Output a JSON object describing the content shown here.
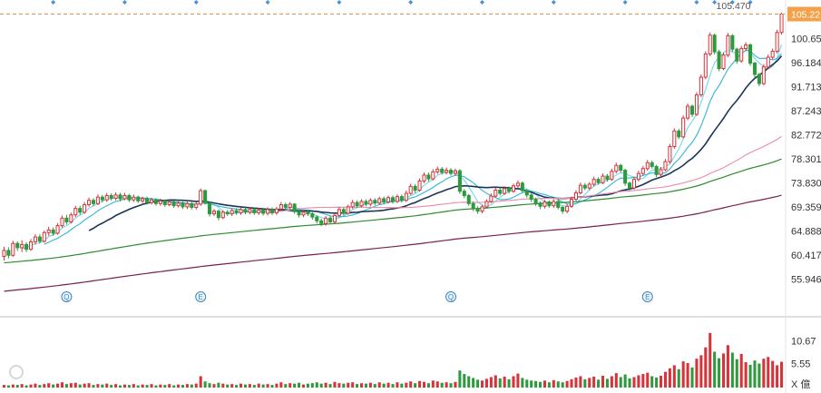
{
  "chart_data": {
    "type": "candlestick",
    "price_ticks": [
      "105.22",
      "100.654",
      "96.184",
      "91.713",
      "87.243",
      "82.772",
      "78.301",
      "73.830",
      "69.359",
      "64.888",
      "60.417",
      "55.946"
    ],
    "price_range": [
      51.5,
      107.5
    ],
    "last_price_label": "105.22",
    "high_label": "105.470",
    "volume_ticks": [
      "10.67",
      "5.55"
    ],
    "volume_unit": "X 億",
    "volume_range": [
      0,
      13.5
    ],
    "event_markers": [
      {
        "letter": "Q",
        "index": 14
      },
      {
        "letter": "E",
        "index": 44
      },
      {
        "letter": "Q",
        "index": 100
      },
      {
        "letter": "E",
        "index": 144
      }
    ],
    "candles": [
      [
        60.2,
        61.3,
        59.4,
        62.0
      ],
      [
        61.3,
        60.4,
        59.8,
        61.9
      ],
      [
        60.4,
        62.6,
        60.1,
        63.1
      ],
      [
        62.6,
        61.8,
        61.2,
        63.0
      ],
      [
        61.8,
        62.4,
        61.0,
        63.2
      ],
      [
        62.4,
        61.5,
        61.0,
        62.8
      ],
      [
        61.5,
        62.9,
        61.2,
        63.4
      ],
      [
        62.9,
        63.8,
        62.4,
        64.3
      ],
      [
        63.8,
        63.0,
        62.6,
        64.3
      ],
      [
        63.0,
        64.6,
        62.7,
        65.0
      ],
      [
        64.6,
        65.1,
        64.0,
        65.7
      ],
      [
        65.1,
        64.5,
        64.0,
        65.6
      ],
      [
        64.5,
        65.9,
        64.2,
        66.4
      ],
      [
        65.9,
        67.3,
        65.5,
        67.8
      ],
      [
        67.3,
        66.6,
        66.1,
        67.9
      ],
      [
        66.6,
        67.9,
        66.3,
        68.3
      ],
      [
        67.9,
        69.1,
        67.5,
        69.6
      ],
      [
        69.1,
        68.4,
        67.9,
        69.6
      ],
      [
        68.4,
        69.8,
        68.1,
        70.3
      ],
      [
        69.8,
        70.6,
        69.4,
        71.1
      ],
      [
        70.6,
        70.0,
        69.5,
        71.0
      ],
      [
        70.0,
        71.2,
        69.7,
        71.7
      ],
      [
        71.2,
        70.7,
        70.2,
        71.6
      ],
      [
        70.7,
        71.5,
        70.3,
        72.0
      ],
      [
        71.5,
        71.0,
        70.6,
        71.9
      ],
      [
        71.0,
        71.6,
        70.6,
        72.1
      ],
      [
        71.6,
        70.9,
        70.4,
        72.0
      ],
      [
        70.9,
        71.5,
        70.6,
        72.0
      ],
      [
        71.5,
        70.7,
        70.3,
        71.8
      ],
      [
        70.7,
        71.2,
        70.3,
        71.7
      ],
      [
        71.2,
        70.5,
        70.1,
        71.5
      ],
      [
        70.5,
        70.9,
        70.1,
        71.3
      ],
      [
        70.9,
        70.2,
        69.8,
        71.3
      ],
      [
        70.2,
        70.7,
        69.8,
        71.1
      ],
      [
        70.7,
        70.0,
        69.6,
        71.0
      ],
      [
        70.0,
        70.5,
        69.6,
        70.9
      ],
      [
        70.5,
        69.8,
        69.4,
        70.8
      ],
      [
        69.8,
        70.3,
        69.5,
        70.7
      ],
      [
        70.3,
        69.6,
        69.2,
        70.6
      ],
      [
        69.6,
        70.1,
        69.3,
        70.5
      ],
      [
        70.1,
        69.4,
        69.0,
        70.4
      ],
      [
        69.4,
        70.0,
        69.0,
        70.4
      ],
      [
        70.0,
        69.3,
        68.9,
        70.3
      ],
      [
        69.3,
        69.9,
        68.9,
        70.3
      ],
      [
        69.9,
        72.4,
        69.6,
        72.8
      ],
      [
        72.4,
        70.1,
        69.8,
        72.6
      ],
      [
        70.1,
        68.1,
        67.6,
        70.3
      ],
      [
        68.1,
        68.6,
        67.7,
        69.0
      ],
      [
        68.6,
        67.4,
        66.9,
        68.9
      ],
      [
        67.4,
        68.4,
        67.1,
        68.8
      ],
      [
        68.4,
        68.1,
        67.7,
        68.8
      ],
      [
        68.1,
        68.7,
        67.7,
        69.1
      ],
      [
        68.7,
        68.3,
        67.9,
        69.1
      ],
      [
        68.3,
        68.9,
        67.9,
        69.3
      ],
      [
        68.9,
        68.4,
        68.0,
        69.3
      ],
      [
        68.4,
        68.9,
        68.0,
        69.3
      ],
      [
        68.9,
        68.3,
        67.9,
        69.3
      ],
      [
        68.3,
        68.8,
        67.9,
        69.2
      ],
      [
        68.8,
        68.2,
        67.8,
        69.2
      ],
      [
        68.2,
        68.9,
        67.8,
        69.3
      ],
      [
        68.9,
        68.3,
        67.9,
        69.3
      ],
      [
        68.3,
        69.0,
        67.9,
        69.4
      ],
      [
        69.0,
        69.8,
        68.7,
        70.3
      ],
      [
        69.8,
        69.3,
        68.9,
        70.2
      ],
      [
        69.3,
        69.9,
        68.9,
        70.3
      ],
      [
        69.9,
        68.5,
        68.1,
        70.1
      ],
      [
        68.5,
        67.9,
        67.4,
        68.9
      ],
      [
        67.9,
        68.4,
        67.5,
        68.8
      ],
      [
        68.4,
        68.1,
        67.7,
        68.8
      ],
      [
        68.1,
        67.5,
        67.0,
        68.4
      ],
      [
        67.5,
        66.8,
        66.3,
        67.8
      ],
      [
        66.8,
        66.3,
        65.8,
        67.2
      ],
      [
        66.3,
        67.3,
        65.9,
        67.7
      ],
      [
        67.3,
        66.6,
        66.2,
        67.7
      ],
      [
        66.6,
        67.8,
        66.3,
        68.2
      ],
      [
        67.8,
        68.9,
        67.5,
        69.4
      ],
      [
        68.9,
        68.2,
        67.8,
        69.3
      ],
      [
        68.2,
        69.4,
        67.9,
        69.8
      ],
      [
        69.4,
        70.2,
        69.0,
        70.7
      ],
      [
        70.2,
        69.6,
        69.2,
        70.6
      ],
      [
        69.6,
        70.4,
        69.3,
        70.8
      ],
      [
        70.4,
        69.9,
        69.5,
        70.8
      ],
      [
        69.9,
        70.6,
        69.5,
        71.0
      ],
      [
        70.6,
        70.1,
        69.7,
        71.0
      ],
      [
        70.1,
        70.9,
        69.8,
        71.3
      ],
      [
        70.9,
        70.3,
        69.9,
        71.3
      ],
      [
        70.3,
        71.1,
        70.0,
        71.5
      ],
      [
        71.1,
        70.4,
        70.0,
        71.5
      ],
      [
        70.4,
        71.3,
        70.1,
        71.7
      ],
      [
        71.3,
        70.6,
        70.2,
        71.7
      ],
      [
        70.6,
        71.9,
        70.3,
        72.4
      ],
      [
        71.9,
        73.2,
        71.6,
        73.7
      ],
      [
        73.2,
        72.5,
        72.0,
        73.6
      ],
      [
        72.5,
        74.2,
        72.2,
        74.7
      ],
      [
        74.2,
        75.3,
        73.8,
        75.8
      ],
      [
        75.3,
        74.6,
        74.1,
        75.8
      ],
      [
        74.6,
        75.9,
        74.3,
        76.4
      ],
      [
        75.9,
        76.4,
        75.5,
        76.9
      ],
      [
        76.4,
        75.8,
        75.4,
        76.8
      ],
      [
        75.8,
        76.2,
        75.4,
        76.7
      ],
      [
        76.2,
        75.6,
        75.2,
        76.6
      ],
      [
        75.6,
        76.1,
        75.2,
        76.5
      ],
      [
        76.1,
        72.3,
        71.8,
        76.4
      ],
      [
        72.3,
        71.5,
        71.0,
        72.7
      ],
      [
        71.5,
        70.0,
        69.6,
        71.8
      ],
      [
        70.0,
        69.1,
        68.6,
        70.4
      ],
      [
        69.1,
        68.6,
        68.1,
        69.5
      ],
      [
        68.6,
        69.4,
        68.2,
        69.8
      ],
      [
        69.4,
        70.4,
        69.1,
        70.8
      ],
      [
        70.4,
        71.4,
        70.1,
        71.9
      ],
      [
        71.4,
        72.5,
        71.1,
        73.0
      ],
      [
        72.5,
        71.9,
        71.5,
        72.9
      ],
      [
        71.9,
        72.8,
        71.6,
        73.2
      ],
      [
        72.8,
        72.3,
        71.9,
        73.2
      ],
      [
        72.3,
        73.3,
        72.0,
        73.7
      ],
      [
        73.3,
        73.8,
        72.9,
        74.3
      ],
      [
        73.8,
        72.4,
        72.0,
        74.1
      ],
      [
        72.4,
        71.6,
        71.1,
        72.7
      ],
      [
        71.6,
        70.8,
        70.3,
        71.9
      ],
      [
        70.8,
        70.1,
        69.6,
        71.1
      ],
      [
        70.1,
        69.5,
        69.0,
        70.4
      ],
      [
        69.5,
        70.3,
        69.1,
        70.7
      ],
      [
        70.3,
        69.6,
        69.2,
        70.6
      ],
      [
        69.6,
        70.4,
        69.2,
        70.8
      ],
      [
        70.4,
        69.3,
        68.9,
        70.7
      ],
      [
        69.3,
        68.6,
        68.1,
        69.6
      ],
      [
        68.6,
        69.5,
        68.2,
        69.9
      ],
      [
        69.5,
        70.8,
        69.2,
        71.3
      ],
      [
        70.8,
        72.0,
        70.5,
        72.5
      ],
      [
        72.0,
        73.4,
        71.7,
        73.9
      ],
      [
        73.4,
        72.9,
        72.5,
        73.8
      ],
      [
        72.9,
        73.6,
        72.5,
        74.0
      ],
      [
        73.6,
        74.5,
        73.2,
        75.0
      ],
      [
        74.5,
        73.9,
        73.5,
        74.9
      ],
      [
        73.9,
        75.1,
        73.6,
        75.6
      ],
      [
        75.1,
        74.5,
        74.1,
        75.5
      ],
      [
        74.5,
        76.0,
        74.2,
        76.5
      ],
      [
        76.0,
        77.1,
        75.6,
        77.6
      ],
      [
        77.1,
        76.2,
        75.8,
        77.4
      ],
      [
        76.2,
        73.8,
        73.3,
        76.5
      ],
      [
        73.8,
        72.9,
        72.4,
        74.1
      ],
      [
        72.9,
        74.5,
        72.6,
        75.0
      ],
      [
        74.5,
        75.6,
        74.1,
        76.1
      ],
      [
        75.6,
        76.5,
        75.2,
        77.0
      ],
      [
        76.5,
        77.6,
        76.1,
        78.1
      ],
      [
        77.6,
        76.9,
        76.5,
        78.0
      ],
      [
        76.9,
        75.4,
        74.9,
        77.2
      ],
      [
        75.4,
        76.3,
        75.0,
        76.8
      ],
      [
        76.3,
        77.8,
        76.0,
        78.3
      ],
      [
        77.8,
        80.6,
        77.4,
        81.1
      ],
      [
        80.6,
        83.5,
        80.2,
        84.0
      ],
      [
        83.5,
        82.4,
        82.0,
        83.9
      ],
      [
        82.4,
        85.9,
        82.1,
        86.4
      ],
      [
        85.9,
        88.1,
        85.5,
        88.6
      ],
      [
        88.1,
        86.6,
        86.1,
        88.4
      ],
      [
        86.6,
        90.2,
        86.3,
        90.7
      ],
      [
        90.2,
        93.5,
        89.8,
        94.0
      ],
      [
        93.5,
        97.8,
        93.1,
        98.3
      ],
      [
        97.8,
        101.3,
        97.4,
        101.8
      ],
      [
        101.3,
        98.2,
        97.7,
        101.6
      ],
      [
        98.2,
        95.1,
        94.6,
        98.6
      ],
      [
        95.1,
        97.6,
        94.8,
        98.1
      ],
      [
        97.6,
        101.2,
        97.2,
        101.7
      ],
      [
        101.2,
        98.7,
        98.2,
        101.5
      ],
      [
        98.7,
        96.5,
        96.0,
        99.0
      ],
      [
        96.5,
        98.8,
        96.2,
        99.3
      ],
      [
        98.8,
        99.5,
        98.4,
        100.0
      ],
      [
        99.5,
        96.1,
        95.6,
        99.8
      ],
      [
        96.1,
        94.0,
        93.5,
        96.4
      ],
      [
        94.0,
        92.3,
        91.8,
        94.3
      ],
      [
        92.3,
        95.4,
        92.0,
        95.9
      ],
      [
        95.4,
        97.2,
        95.0,
        97.7
      ],
      [
        97.2,
        98.3,
        96.8,
        98.8
      ],
      [
        98.3,
        101.8,
        97.9,
        102.3
      ],
      [
        101.8,
        105.22,
        101.4,
        105.47
      ]
    ],
    "volumes": [
      0.6,
      0.5,
      0.7,
      0.6,
      0.8,
      0.5,
      0.7,
      0.9,
      0.6,
      0.8,
      1.0,
      0.7,
      0.9,
      1.2,
      0.8,
      1.0,
      1.1,
      0.7,
      0.9,
      1.0,
      0.6,
      0.8,
      0.7,
      0.9,
      0.6,
      0.8,
      0.5,
      0.7,
      0.6,
      0.8,
      0.5,
      0.7,
      0.6,
      0.8,
      0.5,
      0.7,
      0.6,
      0.8,
      0.5,
      0.7,
      0.6,
      0.8,
      0.7,
      0.9,
      2.6,
      1.4,
      1.0,
      0.8,
      1.1,
      0.9,
      0.7,
      0.8,
      0.6,
      0.9,
      0.7,
      0.8,
      0.6,
      0.9,
      0.7,
      0.8,
      0.6,
      0.9,
      1.2,
      0.8,
      1.0,
      0.9,
      1.1,
      0.7,
      0.9,
      1.0,
      1.2,
      0.9,
      1.1,
      0.8,
      1.3,
      1.0,
      0.9,
      1.1,
      1.2,
      0.8,
      1.0,
      0.9,
      1.1,
      0.8,
      1.2,
      0.9,
      1.1,
      0.8,
      1.2,
      0.9,
      1.1,
      1.4,
      1.0,
      1.5,
      1.3,
      1.0,
      1.6,
      1.4,
      1.1,
      1.2,
      1.0,
      1.3,
      3.9,
      3.1,
      2.6,
      2.2,
      1.8,
      1.6,
      2.0,
      2.4,
      2.8,
      2.1,
      2.5,
      1.9,
      2.6,
      3.2,
      2.2,
      1.8,
      1.6,
      1.5,
      1.3,
      1.6,
      1.2,
      1.7,
      1.4,
      1.2,
      1.5,
      1.9,
      2.3,
      2.6,
      1.9,
      2.2,
      2.5,
      1.8,
      2.7,
      2.0,
      2.6,
      3.3,
      2.4,
      3.0,
      2.1,
      2.4,
      2.8,
      3.1,
      3.4,
      2.6,
      2.3,
      2.7,
      3.6,
      4.4,
      5.1,
      4.2,
      6.0,
      5.6,
      4.6,
      6.6,
      7.4,
      9.2,
      12.5,
      8.2,
      6.7,
      7.8,
      9.7,
      8.0,
      6.5,
      7.7,
      5.8,
      5.2,
      6.2,
      5.5,
      6.6,
      7.0,
      6.1,
      5.1,
      5.9
    ]
  }
}
